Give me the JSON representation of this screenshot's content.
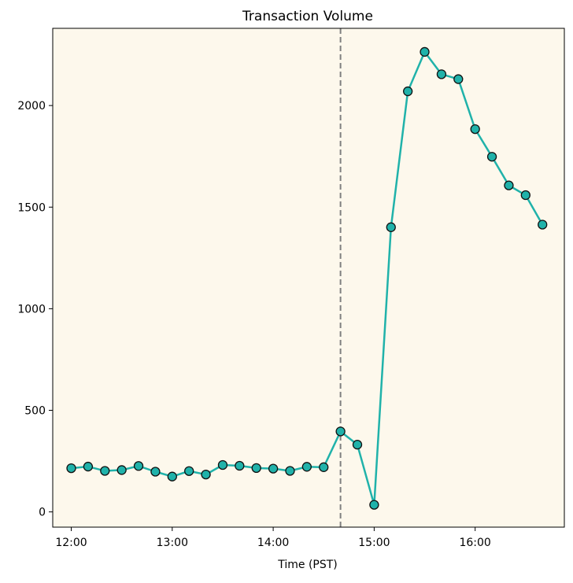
{
  "chart_data": {
    "type": "line",
    "title": "Transaction Volume",
    "xlabel": "Time (PST)",
    "ylabel": "",
    "x_ticks": [
      "12:00",
      "13:00",
      "14:00",
      "15:00",
      "16:00"
    ],
    "y_ticks": [
      0,
      500,
      1000,
      1500,
      2000
    ],
    "x_tick_times": [
      "12:00",
      "13:00",
      "14:00",
      "15:00",
      "16:00"
    ],
    "xlim": [
      "11:49",
      "16:53"
    ],
    "ylim": [
      -75,
      2380
    ],
    "background_color": "#fdf8ec",
    "line_color": "#20b2aa",
    "marker_color": "#20b2aa",
    "marker_edge_color": "#111111",
    "vline": {
      "x": "14:40",
      "style": "dashed",
      "color": "#808080"
    },
    "grid": false,
    "series": [
      {
        "x": [
          "12:00",
          "12:10",
          "12:20",
          "12:30",
          "12:40",
          "12:50",
          "13:00",
          "13:10",
          "13:20",
          "13:30",
          "13:40",
          "13:50",
          "14:00",
          "14:10",
          "14:20",
          "14:30",
          "14:40",
          "14:50",
          "15:00",
          "15:10",
          "15:20",
          "15:30",
          "15:40",
          "15:50",
          "16:00",
          "16:10",
          "16:20",
          "16:30",
          "16:40"
        ],
        "values": [
          215,
          223,
          202,
          206,
          226,
          198,
          174,
          201,
          184,
          231,
          227,
          216,
          213,
          202,
          222,
          220,
          396,
          331,
          35,
          1401,
          2070,
          2264,
          2154,
          2130,
          1884,
          1748,
          1607,
          1559,
          1414
        ]
      }
    ]
  }
}
